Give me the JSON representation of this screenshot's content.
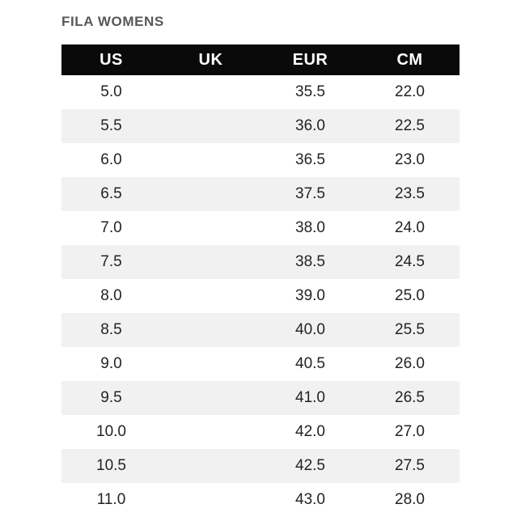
{
  "title": "FILA WOMENS",
  "colors": {
    "header_bar": "#0b0a0a",
    "header_text": "#ffffff",
    "row_alt": "#f1f1f2",
    "row_default": "#ffffff",
    "cell_text": "#212329",
    "title_text": "#57585a"
  },
  "table": {
    "headers": [
      "US",
      "UK",
      "EUR",
      "CM"
    ],
    "rows": [
      [
        "5.0",
        "",
        "35.5",
        "22.0"
      ],
      [
        "5.5",
        "",
        "36.0",
        "22.5"
      ],
      [
        "6.0",
        "",
        "36.5",
        "23.0"
      ],
      [
        "6.5",
        "",
        "37.5",
        "23.5"
      ],
      [
        "7.0",
        "",
        "38.0",
        "24.0"
      ],
      [
        "7.5",
        "",
        "38.5",
        "24.5"
      ],
      [
        "8.0",
        "",
        "39.0",
        "25.0"
      ],
      [
        "8.5",
        "",
        "40.0",
        "25.5"
      ],
      [
        "9.0",
        "",
        "40.5",
        "26.0"
      ],
      [
        "9.5",
        "",
        "41.0",
        "26.5"
      ],
      [
        "10.0",
        "",
        "42.0",
        "27.0"
      ],
      [
        "10.5",
        "",
        "42.5",
        "27.5"
      ],
      [
        "11.0",
        "",
        "43.0",
        "28.0"
      ]
    ]
  }
}
